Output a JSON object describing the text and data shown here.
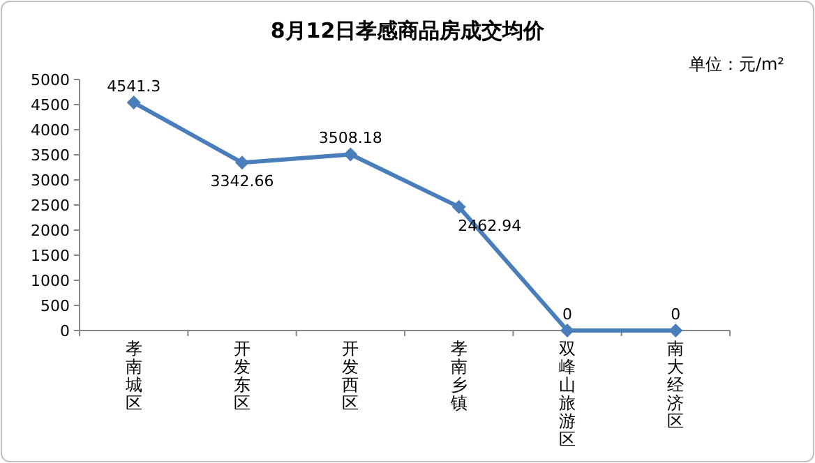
{
  "chart_data": {
    "type": "line",
    "title": "8月12日孝感商品房成交均价",
    "annotations": [
      "单位：元/m²"
    ],
    "categories": [
      "孝南城区",
      "开发东区",
      "开发西区",
      "孝南乡镇",
      "双峰山旅游区",
      "南大经济区"
    ],
    "series": [
      {
        "color": "#4a7ebb",
        "values": [
          4541.3,
          3342.66,
          3508.18,
          2462.94,
          0,
          0
        ]
      }
    ],
    "ylim": [
      0,
      5000
    ],
    "yticks": [
      0,
      500,
      1000,
      1500,
      2000,
      2500,
      3000,
      3500,
      4000,
      4500,
      5000
    ],
    "marker": "diamond",
    "line_style": "solid",
    "grid": false,
    "data_labels": true
  }
}
